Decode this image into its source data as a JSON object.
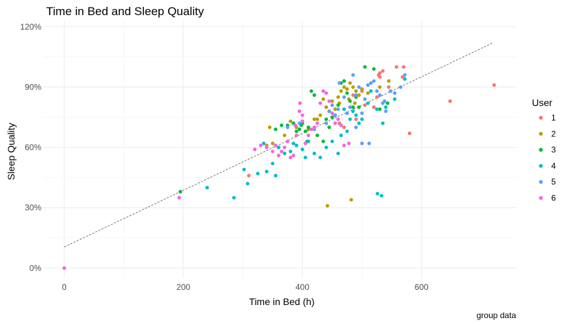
{
  "chart_data": {
    "type": "scatter",
    "title": "Time in Bed and Sleep Quality",
    "xlabel": "Time in Bed (h)",
    "ylabel": "Sleep Quality",
    "caption": "group data",
    "xlim": [
      -35,
      760
    ],
    "ylim": [
      -0.05,
      1.23
    ],
    "x_ticks": [
      0,
      200,
      400,
      600
    ],
    "x_tick_labels": [
      "0",
      "200",
      "400",
      "600"
    ],
    "y_ticks": [
      0,
      0.3,
      0.6,
      0.9,
      1.2
    ],
    "y_tick_labels": [
      "0%",
      "30%",
      "60%",
      "90%",
      "120%"
    ],
    "grid": true,
    "legend": {
      "title": "User",
      "position": "right"
    },
    "trend_line": {
      "style": "dashed",
      "color": "#555555",
      "x": [
        0,
        720
      ],
      "y": [
        0.105,
        1.12
      ]
    },
    "series": [
      {
        "name": "1",
        "color": "#F8766D",
        "points": [
          [
            310,
            0.46
          ],
          [
            462,
            0.72
          ],
          [
            470,
            0.7
          ],
          [
            490,
            0.74
          ],
          [
            505,
            0.81
          ],
          [
            520,
            0.8
          ],
          [
            525,
            0.85
          ],
          [
            528,
            0.96
          ],
          [
            530,
            0.97
          ],
          [
            535,
            0.98
          ],
          [
            530,
            0.95
          ],
          [
            558,
            1.0
          ],
          [
            570,
            1.0
          ],
          [
            568,
            0.95
          ],
          [
            580,
            0.67
          ],
          [
            648,
            0.83
          ],
          [
            722,
            0.91
          ],
          [
            545,
            0.9
          ],
          [
            500,
            0.88
          ],
          [
            485,
            0.86
          ]
        ]
      },
      {
        "name": "2",
        "color": "#B79F00",
        "points": [
          [
            340,
            0.61
          ],
          [
            345,
            0.7
          ],
          [
            350,
            0.62
          ],
          [
            360,
            0.6
          ],
          [
            370,
            0.66
          ],
          [
            380,
            0.73
          ],
          [
            390,
            0.7
          ],
          [
            400,
            0.72
          ],
          [
            410,
            0.69
          ],
          [
            420,
            0.74
          ],
          [
            425,
            0.74
          ],
          [
            430,
            0.76
          ],
          [
            435,
            0.84
          ],
          [
            440,
            0.8
          ],
          [
            445,
            0.78
          ],
          [
            450,
            0.83
          ],
          [
            455,
            0.76
          ],
          [
            460,
            0.85
          ],
          [
            465,
            0.88
          ],
          [
            470,
            0.9
          ],
          [
            475,
            0.89
          ],
          [
            480,
            0.92
          ],
          [
            485,
            0.9
          ],
          [
            490,
            0.88
          ],
          [
            495,
            0.86
          ],
          [
            500,
            0.89
          ],
          [
            510,
            0.87
          ],
          [
            530,
            0.9
          ],
          [
            545,
            0.93
          ],
          [
            442,
            0.31
          ],
          [
            482,
            0.34
          ],
          [
            455,
            0.79
          ],
          [
            462,
            0.82
          ],
          [
            478,
            0.84
          ],
          [
            488,
            0.82
          ]
        ]
      },
      {
        "name": "3",
        "color": "#00BA38",
        "points": [
          [
            195,
            0.38
          ],
          [
            355,
            0.69
          ],
          [
            365,
            0.71
          ],
          [
            375,
            0.71
          ],
          [
            385,
            0.72
          ],
          [
            390,
            0.68
          ],
          [
            395,
            0.69
          ],
          [
            398,
            0.71
          ],
          [
            400,
            0.72
          ],
          [
            405,
            0.68
          ],
          [
            410,
            0.7
          ],
          [
            415,
            0.88
          ],
          [
            420,
            0.86
          ],
          [
            425,
            0.66
          ],
          [
            435,
            0.63
          ],
          [
            440,
            0.74
          ],
          [
            445,
            0.7
          ],
          [
            450,
            0.75
          ],
          [
            455,
            0.76
          ],
          [
            460,
            0.81
          ],
          [
            465,
            0.92
          ],
          [
            470,
            0.93
          ],
          [
            475,
            0.87
          ],
          [
            480,
            0.83
          ],
          [
            485,
            0.8
          ],
          [
            490,
            0.85
          ],
          [
            495,
            0.8
          ],
          [
            505,
            1.0
          ],
          [
            530,
            0.79
          ],
          [
            543,
            0.82
          ],
          [
            520,
            0.99
          ],
          [
            408,
            0.63
          ]
        ]
      },
      {
        "name": "4",
        "color": "#00BFC4",
        "points": [
          [
            240,
            0.4
          ],
          [
            285,
            0.35
          ],
          [
            302,
            0.49
          ],
          [
            308,
            0.42
          ],
          [
            325,
            0.47
          ],
          [
            335,
            0.62
          ],
          [
            340,
            0.48
          ],
          [
            350,
            0.52
          ],
          [
            355,
            0.46
          ],
          [
            360,
            0.6
          ],
          [
            370,
            0.57
          ],
          [
            380,
            0.58
          ],
          [
            385,
            0.62
          ],
          [
            390,
            0.61
          ],
          [
            400,
            0.59
          ],
          [
            405,
            0.55
          ],
          [
            410,
            0.63
          ],
          [
            420,
            0.57
          ],
          [
            430,
            0.55
          ],
          [
            440,
            0.6
          ],
          [
            450,
            0.63
          ],
          [
            460,
            0.57
          ],
          [
            465,
            0.66
          ],
          [
            475,
            0.68
          ],
          [
            480,
            0.74
          ],
          [
            490,
            0.76
          ],
          [
            495,
            0.72
          ],
          [
            500,
            0.74
          ],
          [
            510,
            0.82
          ],
          [
            515,
            0.88
          ],
          [
            525,
            0.79
          ],
          [
            535,
            0.72
          ],
          [
            540,
            0.8
          ],
          [
            555,
            0.84
          ],
          [
            572,
            0.94
          ],
          [
            526,
            0.37
          ],
          [
            533,
            0.36
          ],
          [
            470,
            0.79
          ],
          [
            485,
            0.78
          ]
        ]
      },
      {
        "name": "5",
        "color": "#619CFF",
        "points": [
          [
            375,
            0.7
          ],
          [
            395,
            0.72
          ],
          [
            420,
            0.69
          ],
          [
            440,
            0.72
          ],
          [
            445,
            0.78
          ],
          [
            450,
            0.81
          ],
          [
            455,
            0.76
          ],
          [
            460,
            0.79
          ],
          [
            462,
            0.92
          ],
          [
            470,
            0.85
          ],
          [
            475,
            0.77
          ],
          [
            480,
            0.8
          ],
          [
            485,
            0.96
          ],
          [
            490,
            0.86
          ],
          [
            495,
            0.9
          ],
          [
            500,
            0.77
          ],
          [
            505,
            0.84
          ],
          [
            510,
            0.91
          ],
          [
            512,
            0.62
          ],
          [
            515,
            0.92
          ],
          [
            520,
            0.93
          ],
          [
            525,
            0.88
          ],
          [
            530,
            0.86
          ],
          [
            535,
            0.82
          ],
          [
            540,
            0.78
          ],
          [
            548,
            0.88
          ],
          [
            555,
            0.87
          ],
          [
            565,
            0.9
          ],
          [
            572,
            0.96
          ],
          [
            538,
            0.83
          ],
          [
            500,
            0.62
          ],
          [
            490,
            0.7
          ]
        ]
      },
      {
        "name": "6",
        "color": "#F564E3",
        "points": [
          [
            0,
            0.0
          ],
          [
            193,
            0.35
          ],
          [
            320,
            0.59
          ],
          [
            330,
            0.61
          ],
          [
            340,
            0.6
          ],
          [
            350,
            0.58
          ],
          [
            355,
            0.61
          ],
          [
            360,
            0.56
          ],
          [
            365,
            0.58
          ],
          [
            370,
            0.6
          ],
          [
            375,
            0.63
          ],
          [
            380,
            0.55
          ],
          [
            385,
            0.56
          ],
          [
            390,
            0.66
          ],
          [
            395,
            0.78
          ],
          [
            400,
            0.73
          ],
          [
            405,
            0.62
          ],
          [
            410,
            0.66
          ],
          [
            415,
            0.69
          ],
          [
            420,
            0.7
          ],
          [
            425,
            0.72
          ],
          [
            430,
            0.82
          ],
          [
            435,
            0.88
          ],
          [
            440,
            0.87
          ],
          [
            445,
            0.83
          ],
          [
            450,
            0.77
          ],
          [
            455,
            0.72
          ],
          [
            460,
            0.74
          ],
          [
            465,
            0.71
          ],
          [
            470,
            0.61
          ],
          [
            396,
            0.82
          ],
          [
            400,
            0.76
          ],
          [
            388,
            0.71
          ],
          [
            478,
            0.62
          ]
        ]
      }
    ]
  }
}
